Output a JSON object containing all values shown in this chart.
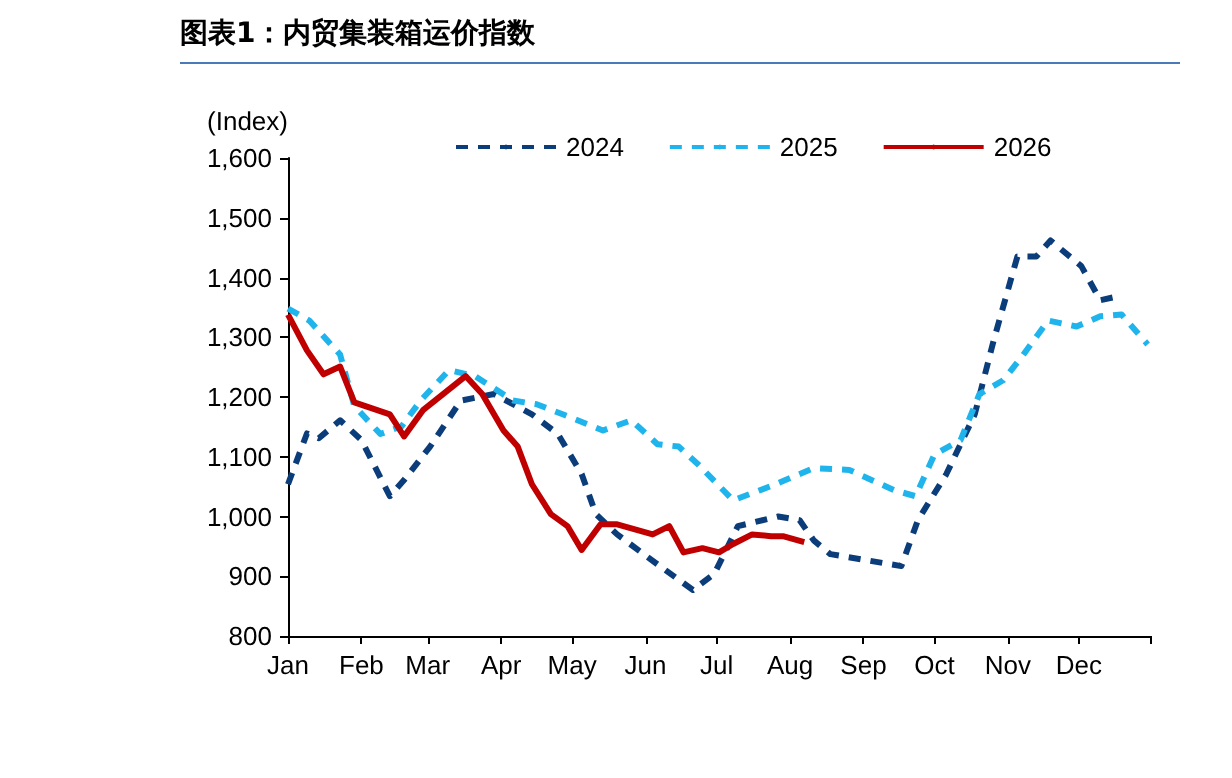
{
  "chart_data": {
    "type": "line",
    "title": "图表1：内贸集装箱运价指数",
    "ylabel": "(Index)",
    "xlim": [
      "--01-01",
      "--12-31"
    ],
    "xticks": [
      {
        "value": "--01-01",
        "label": "Jan"
      },
      {
        "value": "--02-01",
        "label": "Feb"
      },
      {
        "value": "--03-01",
        "label": "Mar"
      },
      {
        "value": "--04-01",
        "label": "Apr"
      },
      {
        "value": "--05-01",
        "label": "May"
      },
      {
        "value": "--06-01",
        "label": "Jun"
      },
      {
        "value": "--07-01",
        "label": "Jul"
      },
      {
        "value": "--08-01",
        "label": "Aug"
      },
      {
        "value": "--09-01",
        "label": "Sep"
      },
      {
        "value": "--10-01",
        "label": "Oct"
      },
      {
        "value": "--11-01",
        "label": "Nov"
      },
      {
        "value": "--12-01",
        "label": "Dec"
      },
      {
        "value": "--12-31",
        "label": null
      }
    ],
    "ylim": [
      800,
      1600
    ],
    "yticks": [
      {
        "value": 800,
        "label": "800"
      },
      {
        "value": 900,
        "label": "900"
      },
      {
        "value": 1000,
        "label": "1,000"
      },
      {
        "value": 1100,
        "label": "1,100"
      },
      {
        "value": 1200,
        "label": "1,200"
      },
      {
        "value": 1300,
        "label": "1,300"
      },
      {
        "value": 1400,
        "label": "1,400"
      },
      {
        "value": 1500,
        "label": "1,500"
      },
      {
        "value": 1600,
        "label": "1,600"
      }
    ],
    "grid": false,
    "legend": "top",
    "marker": "none",
    "series": [
      {
        "name": "2024",
        "color": "#0b3d7a",
        "line_style": "dashed",
        "x": [
          "--01-01",
          "--01-09",
          "--01-14",
          "--01-23",
          "--02-01",
          "--02-13",
          "--02-19",
          "--03-02",
          "--03-15",
          "--03-29",
          "--04-14",
          "--04-25",
          "--05-05",
          "--05-11",
          "--05-20",
          "--06-06",
          "--06-21",
          "--06-30",
          "--07-10",
          "--07-27",
          "--08-05",
          "--08-11",
          "--08-18",
          "--09-02",
          "--09-17",
          "--09-24",
          "--10-06",
          "--10-18",
          "--10-26",
          "--11-05",
          "--11-13",
          "--11-19",
          "--12-02",
          "--12-10",
          "--12-17"
        ],
        "values": [
          1054,
          1139,
          1131,
          1161,
          1128,
          1034,
          1061,
          1117,
          1194,
          1205,
          1171,
          1138,
          1071,
          1004,
          970,
          920,
          877,
          904,
          984,
          1000,
          994,
          960,
          937,
          927,
          917,
          994,
          1071,
          1171,
          1295,
          1435,
          1435,
          1462,
          1419,
          1362,
          1368
        ]
      },
      {
        "name": "2025",
        "color": "#1fb4ec",
        "line_style": "dashed",
        "x": [
          "--01-01",
          "--01-10",
          "--01-23",
          "--01-29",
          "--02-09",
          "--02-18",
          "--02-26",
          "--03-10",
          "--03-21",
          "--04-06",
          "--04-16",
          "--04-27",
          "--05-14",
          "--05-26",
          "--06-06",
          "--06-15",
          "--06-23",
          "--07-08",
          "--07-24",
          "--08-11",
          "--08-26",
          "--09-14",
          "--09-23",
          "--10-01",
          "--10-12",
          "--10-20",
          "--10-30",
          "--11-07",
          "--11-18",
          "--11-30",
          "--12-10",
          "--12-19",
          "--12-30"
        ],
        "values": [
          1348,
          1328,
          1271,
          1185,
          1138,
          1151,
          1194,
          1245,
          1235,
          1194,
          1188,
          1171,
          1144,
          1161,
          1121,
          1117,
          1088,
          1027,
          1051,
          1081,
          1078,
          1044,
          1034,
          1104,
          1128,
          1205,
          1228,
          1268,
          1328,
          1318,
          1335,
          1338,
          1288
        ]
      },
      {
        "name": "2026",
        "color": "#c00000",
        "line_style": "solid",
        "x": [
          "--01-01",
          "--01-09",
          "--01-16",
          "--01-23",
          "--01-29",
          "--02-13",
          "--02-19",
          "--02-27",
          "--03-17",
          "--03-24",
          "--04-02",
          "--04-08",
          "--04-14",
          "--04-22",
          "--04-29",
          "--05-05",
          "--05-13",
          "--05-20",
          "--06-04",
          "--06-11",
          "--06-17",
          "--06-25",
          "--07-02",
          "--07-08",
          "--07-16",
          "--07-24",
          "--07-29",
          "--08-07"
        ],
        "values": [
          1338,
          1278,
          1238,
          1251,
          1191,
          1171,
          1134,
          1178,
          1235,
          1205,
          1144,
          1117,
          1054,
          1004,
          984,
          944,
          987,
          987,
          970,
          984,
          940,
          947,
          940,
          954,
          970,
          967,
          967,
          957
        ]
      }
    ]
  }
}
